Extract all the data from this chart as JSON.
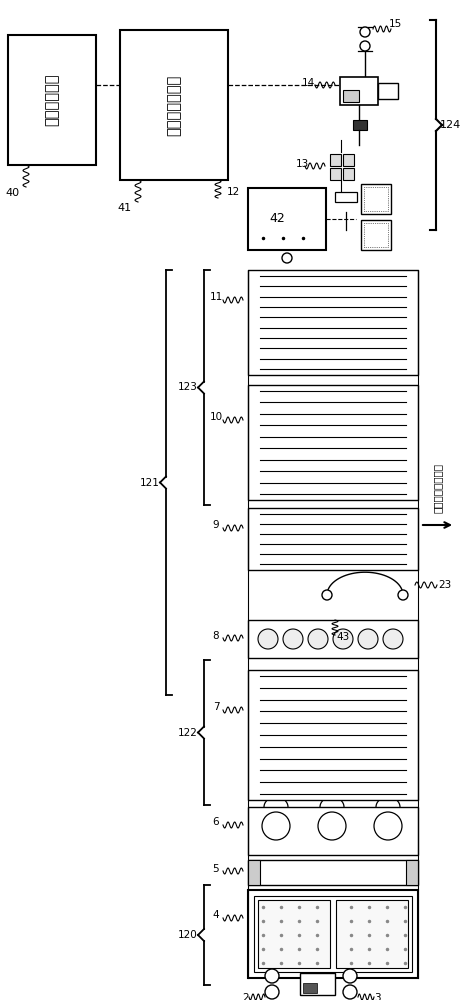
{
  "bg_color": "#ffffff",
  "lc": "#000000",
  "fig_width": 4.77,
  "fig_height": 10.0,
  "box1_text": "控制用计算机",
  "box2_text": "翘曲形状确定部",
  "direction_text": "金属带的行进方向"
}
